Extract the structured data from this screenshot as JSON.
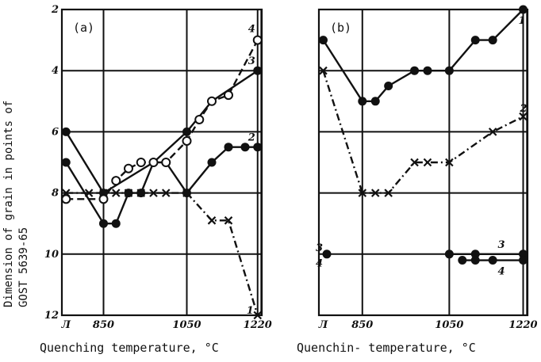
{
  "chart_data": [
    {
      "type": "line",
      "panel_label": "(a)",
      "xlabel": "Quenching temperature, °C",
      "ylabel_line1": "Dimension of grain in points of",
      "ylabel_line2": "GOST 5639-65",
      "x_tick_labels": [
        {
          "x": 760,
          "label": "Л"
        },
        {
          "x": 850,
          "label": "850"
        },
        {
          "x": 1050,
          "label": "1050"
        },
        {
          "x": 1220,
          "label": "1220"
        }
      ],
      "y_tick_labels": [
        {
          "y": 2,
          "label": "2"
        },
        {
          "y": 4,
          "label": "4"
        },
        {
          "y": 6,
          "label": "6"
        },
        {
          "y": 8,
          "label": "8"
        },
        {
          "y": 10,
          "label": "10"
        },
        {
          "y": 12,
          "label": "12"
        }
      ],
      "xlim": [
        750,
        1230
      ],
      "ylim": [
        12,
        2
      ],
      "grid": true,
      "series": [
        {
          "name": "1",
          "marker": "x",
          "style": "dashdot",
          "points": [
            [
              760,
              8.0
            ],
            [
              815,
              8.0
            ],
            [
              850,
              8.0
            ],
            [
              880,
              8.0
            ],
            [
              910,
              8.0
            ],
            [
              940,
              8.0
            ],
            [
              970,
              8.0
            ],
            [
              1000,
              8.0
            ],
            [
              1050,
              8.0
            ],
            [
              1110,
              8.9
            ],
            [
              1150,
              8.9
            ],
            [
              1220,
              12.0
            ]
          ]
        },
        {
          "name": "2",
          "marker": "filled",
          "style": "solid",
          "points": [
            [
              760,
              7.0
            ],
            [
              850,
              9.0
            ],
            [
              880,
              9.0
            ],
            [
              910,
              8.0
            ],
            [
              940,
              8.0
            ],
            [
              970,
              7.0
            ],
            [
              1000,
              7.0
            ],
            [
              1050,
              8.0
            ],
            [
              1110,
              7.0
            ],
            [
              1150,
              6.5
            ],
            [
              1190,
              6.5
            ],
            [
              1220,
              6.5
            ]
          ]
        },
        {
          "name": "3",
          "marker": "filled",
          "style": "solid",
          "points": [
            [
              760,
              6.0
            ],
            [
              850,
              8.0
            ],
            [
              970,
              7.0
            ],
            [
              1050,
              6.0
            ],
            [
              1110,
              5.0
            ],
            [
              1220,
              4.0
            ]
          ]
        },
        {
          "name": "4",
          "marker": "open",
          "style": "dashed",
          "points": [
            [
              760,
              8.2
            ],
            [
              850,
              8.2
            ],
            [
              880,
              7.6
            ],
            [
              910,
              7.2
            ],
            [
              940,
              7.0
            ],
            [
              970,
              7.0
            ],
            [
              1000,
              7.0
            ],
            [
              1050,
              6.3
            ],
            [
              1080,
              5.6
            ],
            [
              1110,
              5.0
            ],
            [
              1150,
              4.8
            ],
            [
              1220,
              3.0
            ]
          ]
        }
      ]
    },
    {
      "type": "line",
      "panel_label": "(b)",
      "xlabel": "Quenchin- temperature, °C",
      "x_tick_labels": [
        {
          "x": 760,
          "label": "Л"
        },
        {
          "x": 850,
          "label": "850"
        },
        {
          "x": 1050,
          "label": "1050"
        },
        {
          "x": 1220,
          "label": "1220"
        }
      ],
      "xlim": [
        750,
        1230
      ],
      "ylim": [
        12,
        2
      ],
      "grid": true,
      "series": [
        {
          "name": "1",
          "marker": "filled",
          "style": "solid",
          "points": [
            [
              760,
              3.0
            ],
            [
              850,
              5.0
            ],
            [
              880,
              5.0
            ],
            [
              910,
              4.5
            ],
            [
              970,
              4.0
            ],
            [
              1000,
              4.0
            ],
            [
              1050,
              4.0
            ],
            [
              1110,
              3.0
            ],
            [
              1150,
              3.0
            ],
            [
              1220,
              2.0
            ]
          ]
        },
        {
          "name": "2",
          "marker": "x",
          "style": "dashdot",
          "points": [
            [
              760,
              4.0
            ],
            [
              850,
              8.0
            ],
            [
              880,
              8.0
            ],
            [
              910,
              8.0
            ],
            [
              970,
              7.0
            ],
            [
              1000,
              7.0
            ],
            [
              1050,
              7.0
            ],
            [
              1150,
              6.0
            ],
            [
              1220,
              5.5
            ]
          ]
        },
        {
          "name": "3",
          "marker": "filled",
          "style": "solid",
          "points": [
            [
              1050,
              10.0
            ],
            [
              1110,
              10.0
            ],
            [
              1220,
              10.0
            ]
          ]
        },
        {
          "name": "4",
          "marker": "filled",
          "style": "solid",
          "points": [
            [
              1080,
              10.2
            ],
            [
              1110,
              10.2
            ],
            [
              1150,
              10.2
            ],
            [
              1220,
              10.2
            ]
          ]
        }
      ],
      "start_labels": [
        {
          "label": "3",
          "y": 9.8
        },
        {
          "label": "4",
          "y": 10.3
        }
      ]
    }
  ]
}
